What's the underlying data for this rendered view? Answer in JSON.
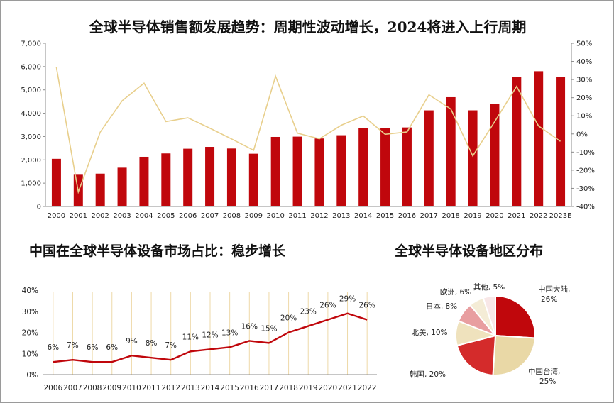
{
  "colors": {
    "bar": "#c0070c",
    "line_top": "#e8cf8c",
    "line_bottom": "#c0070c",
    "grid_bottom": "#eed9a8",
    "axis": "#8c8c8c",
    "pie": [
      "#c0070c",
      "#e9d8a6",
      "#d42b2b",
      "#efe2bd",
      "#e89ea0",
      "#f4ecd6",
      "#f8e7e7"
    ]
  },
  "chart_data": [
    {
      "type": "bar",
      "title": "全球半导体销售额发展趋势：周期性波动增长，2024将进入上行周期",
      "categories": [
        "2000",
        "2001",
        "2002",
        "2003",
        "2004",
        "2005",
        "2006",
        "2007",
        "2008",
        "2009",
        "2010",
        "2011",
        "2012",
        "2013",
        "2014",
        "2015",
        "2016",
        "2017",
        "2018",
        "2019",
        "2020",
        "2021",
        "2022",
        "2023E"
      ],
      "series": [
        {
          "name": "",
          "kind": "bar",
          "axis": "left",
          "values": [
            2044,
            1390,
            1408,
            1663,
            2131,
            2275,
            2477,
            2556,
            2486,
            2263,
            2983,
            2995,
            2916,
            3056,
            3358,
            3352,
            3389,
            4122,
            4688,
            4123,
            4404,
            5559,
            5801,
            5566
          ]
        },
        {
          "name": "",
          "kind": "line",
          "axis": "right",
          "unit": "%",
          "values": [
            36.8,
            -32,
            1,
            18.3,
            28,
            6.8,
            8.9,
            3.2,
            -2.8,
            -9,
            31.8,
            0.4,
            -2.7,
            4.8,
            9.9,
            -0.2,
            1.1,
            21.6,
            13.7,
            -12.1,
            6.8,
            26.2,
            4.4,
            -4.1
          ]
        }
      ],
      "ylim_left": [
        0,
        7000
      ],
      "yticks_left": [
        "0",
        "1,000",
        "2,000",
        "3,000",
        "4,000",
        "5,000",
        "6,000",
        "7,000"
      ],
      "ylim_right": [
        -40,
        50
      ],
      "yticks_right": [
        "-40%",
        "-30%",
        "-20%",
        "-10%",
        "0%",
        "10%",
        "20%",
        "30%",
        "40%",
        "50%"
      ],
      "grid": false
    },
    {
      "type": "line",
      "title": "中国在全球半导体设备市场占比：稳步增长",
      "categories": [
        "2006",
        "2007",
        "2008",
        "2009",
        "2010",
        "2011",
        "2012",
        "2013",
        "2014",
        "2015",
        "2016",
        "2017",
        "2018",
        "2019",
        "2020",
        "2021",
        "2022"
      ],
      "series": [
        {
          "name": "",
          "values": [
            6,
            7,
            6,
            6,
            9,
            8,
            7,
            11,
            12,
            13,
            16,
            15,
            20,
            23,
            26,
            29,
            26
          ],
          "labels": [
            "6%",
            "7%",
            "6%",
            "6%",
            "9%",
            "8%",
            "7%",
            "11%",
            "12%",
            "13%",
            "16%",
            "15%",
            "20%",
            "23%",
            "26%",
            "29%",
            "26%"
          ]
        }
      ],
      "ylim": [
        0,
        40
      ],
      "yticks": [
        "0%",
        "10%",
        "20%",
        "30%",
        "40%"
      ],
      "grid": "vertical"
    },
    {
      "type": "pie",
      "title": "全球半导体设备地区分布",
      "slices": [
        {
          "label": "中国大陆, 26%",
          "value": 26
        },
        {
          "label": "中国台湾, 25%",
          "value": 25
        },
        {
          "label": "韩国, 20%",
          "value": 20
        },
        {
          "label": "北美, 10%",
          "value": 10
        },
        {
          "label": "日本, 8%",
          "value": 8
        },
        {
          "label": "欧洲, 6%",
          "value": 6
        },
        {
          "label": "其他, 5%",
          "value": 5
        }
      ]
    }
  ]
}
